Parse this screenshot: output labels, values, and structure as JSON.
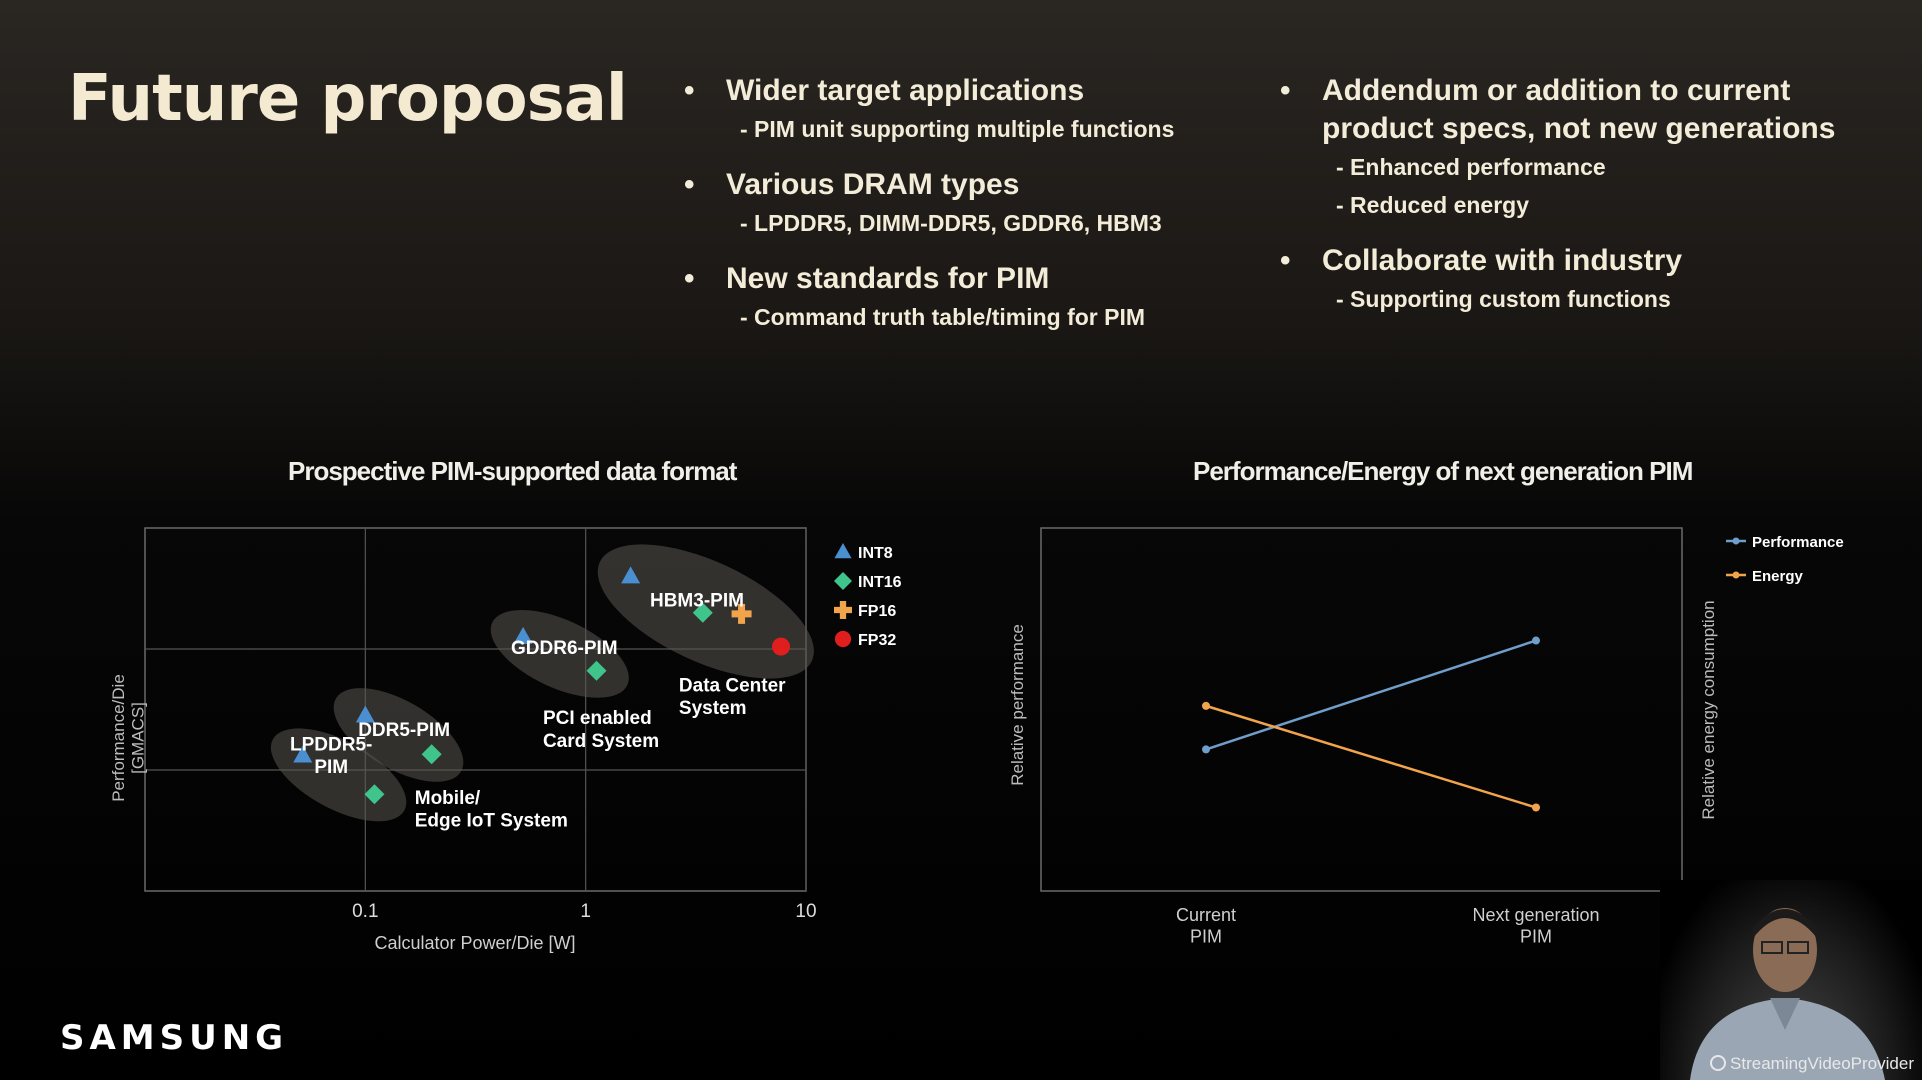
{
  "slide": {
    "title": "Future proposal",
    "brand": "SAMSUNG",
    "watermark": "StreamingVideoProvider"
  },
  "bullets_left": [
    {
      "head": "Wider target applications",
      "sub": [
        "- PIM unit supporting multiple functions"
      ]
    },
    {
      "head": "Various DRAM types",
      "sub": [
        "- LPDDR5, DIMM-DDR5, GDDR6, HBM3"
      ]
    },
    {
      "head": "New standards for PIM",
      "sub": [
        "- Command truth table/timing for PIM"
      ]
    }
  ],
  "bullets_right": [
    {
      "head": [
        "Addendum or addition to current",
        "product specs, not new generations"
      ],
      "sub": [
        "- Enhanced performance",
        "- Reduced energy"
      ]
    },
    {
      "head": [
        "Collaborate with industry"
      ],
      "sub": [
        "- Supporting custom functions"
      ]
    }
  ],
  "chart_data": [
    {
      "type": "scatter",
      "title": "Prospective PIM-supported data format",
      "xlabel": "Calculator Power/Die [W]",
      "ylabel": [
        "Performance/Die",
        "[GMACS]"
      ],
      "xscale": "log",
      "xlim": [
        0.01,
        10
      ],
      "xticks": [
        0.1,
        1,
        10
      ],
      "xtick_labels": [
        "0.1",
        "1",
        "10"
      ],
      "ylim": [
        0,
        3
      ],
      "grid": true,
      "legend_position": "right",
      "legend": [
        {
          "name": "INT8",
          "marker": "triangle",
          "color": "#4a8fd1"
        },
        {
          "name": "INT16",
          "marker": "diamond",
          "color": "#3fc48c"
        },
        {
          "name": "FP16",
          "marker": "cross",
          "color": "#f2a44c"
        },
        {
          "name": "FP32",
          "marker": "circle",
          "color": "#e01e1e"
        }
      ],
      "points": [
        {
          "series": "INT8",
          "x": 0.052,
          "y": 1.12
        },
        {
          "series": "INT16",
          "x": 0.11,
          "y": 0.8
        },
        {
          "series": "INT8",
          "x": 0.1,
          "y": 1.45
        },
        {
          "series": "INT16",
          "x": 0.2,
          "y": 1.13
        },
        {
          "series": "INT8",
          "x": 0.52,
          "y": 2.1
        },
        {
          "series": "INT16",
          "x": 1.12,
          "y": 1.82
        },
        {
          "series": "INT8",
          "x": 1.6,
          "y": 2.6
        },
        {
          "series": "INT16",
          "x": 3.4,
          "y": 2.3
        },
        {
          "series": "FP16",
          "x": 5.1,
          "y": 2.29
        },
        {
          "series": "FP32",
          "x": 7.7,
          "y": 2.02
        }
      ],
      "clusters": [
        {
          "label": [
            "LPDDR5-",
            "PIM"
          ],
          "x": 0.07,
          "y": 0.98
        },
        {
          "label": [
            "DDR5-PIM"
          ],
          "x": 0.15,
          "y": 1.28
        },
        {
          "label": [
            "GDDR6-PIM"
          ],
          "x": 0.8,
          "y": 1.96
        },
        {
          "label": [
            "HBM3-PIM"
          ],
          "x": 3.2,
          "y": 2.35
        }
      ],
      "annotations": [
        {
          "text": [
            "Mobile/",
            "Edge IoT System"
          ],
          "x": 0.19,
          "y": 0.72
        },
        {
          "text": [
            "PCI enabled",
            "Card System"
          ],
          "x": 0.64,
          "y": 1.38
        },
        {
          "text": [
            "Data Center",
            "System"
          ],
          "x": 2.65,
          "y": 1.65
        }
      ]
    },
    {
      "type": "line",
      "title": "Performance/Energy of next generation PIM",
      "categories": [
        [
          "Current",
          "PIM"
        ],
        [
          "Next generation",
          "PIM"
        ]
      ],
      "ylabel_left": "Relative performance",
      "ylabel_right": "Relative energy consumption",
      "legend_position": "top-right",
      "grid": false,
      "series": [
        {
          "name": "Performance",
          "color": "#6e9ec9",
          "values": [
            0.39,
            0.69
          ]
        },
        {
          "name": "Energy",
          "color": "#f2a44c",
          "values": [
            0.51,
            0.23
          ]
        }
      ],
      "ylim": [
        0,
        1
      ]
    }
  ]
}
